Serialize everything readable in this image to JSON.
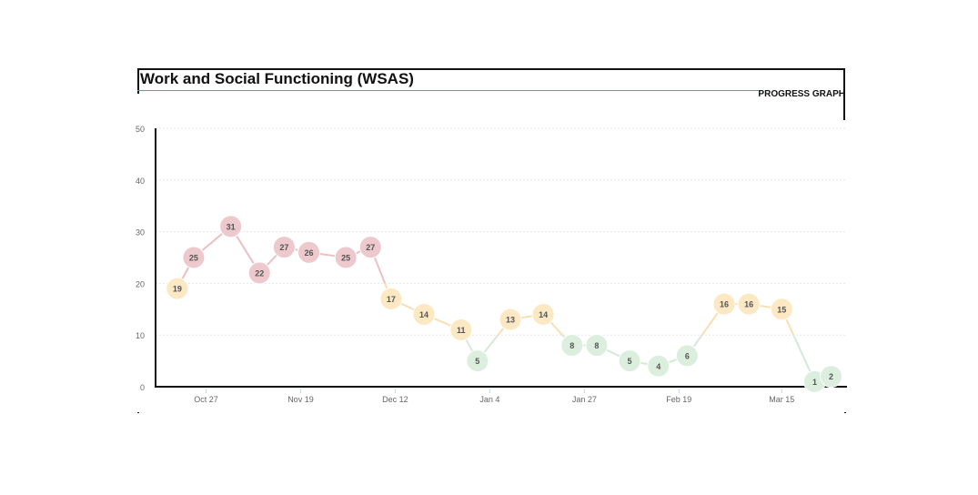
{
  "header": {
    "title": "Work and Social Functioning (WSAS)",
    "subtitle": "PROGRESS GRAPH"
  },
  "chart_data": {
    "type": "line",
    "title": "Work and Social Functioning (WSAS)",
    "xlabel": "",
    "ylabel": "",
    "ylim": [
      0,
      50
    ],
    "yticks": [
      0,
      10,
      20,
      30,
      40,
      50
    ],
    "xticks": [
      "Oct 27",
      "Nov 19",
      "Dec 12",
      "Jan 4",
      "Jan 27",
      "Feb 19",
      "Mar 15"
    ],
    "grid": true,
    "thresholds": [
      {
        "below": 10,
        "color": "#dcefdf",
        "line": "#d3ead7"
      },
      {
        "below": 20,
        "color": "#fde8c4",
        "line": "#f9dfb3"
      },
      {
        "below": 51,
        "color": "#edc8cc",
        "line": "#ebbfc3"
      }
    ],
    "points": [
      {
        "x": "Oct 20",
        "y": 19
      },
      {
        "x": "Oct 24",
        "y": 25
      },
      {
        "x": "Nov 2",
        "y": 31
      },
      {
        "x": "Nov 9",
        "y": 22
      },
      {
        "x": "Nov 15",
        "y": 27
      },
      {
        "x": "Nov 21",
        "y": 26
      },
      {
        "x": "Nov 30",
        "y": 25
      },
      {
        "x": "Dec 6",
        "y": 27
      },
      {
        "x": "Dec 11",
        "y": 17
      },
      {
        "x": "Dec 19",
        "y": 14
      },
      {
        "x": "Dec 28",
        "y": 11
      },
      {
        "x": "Jan 1",
        "y": 5
      },
      {
        "x": "Jan 9",
        "y": 13
      },
      {
        "x": "Jan 17",
        "y": 14
      },
      {
        "x": "Jan 24",
        "y": 8
      },
      {
        "x": "Jan 30",
        "y": 8
      },
      {
        "x": "Feb 7",
        "y": 5
      },
      {
        "x": "Feb 14",
        "y": 4
      },
      {
        "x": "Feb 21",
        "y": 6
      },
      {
        "x": "Mar 1",
        "y": 16
      },
      {
        "x": "Mar 7",
        "y": 16
      },
      {
        "x": "Mar 15",
        "y": 15
      },
      {
        "x": "Mar 23",
        "y": 1
      },
      {
        "x": "Mar 27",
        "y": 2
      }
    ]
  }
}
